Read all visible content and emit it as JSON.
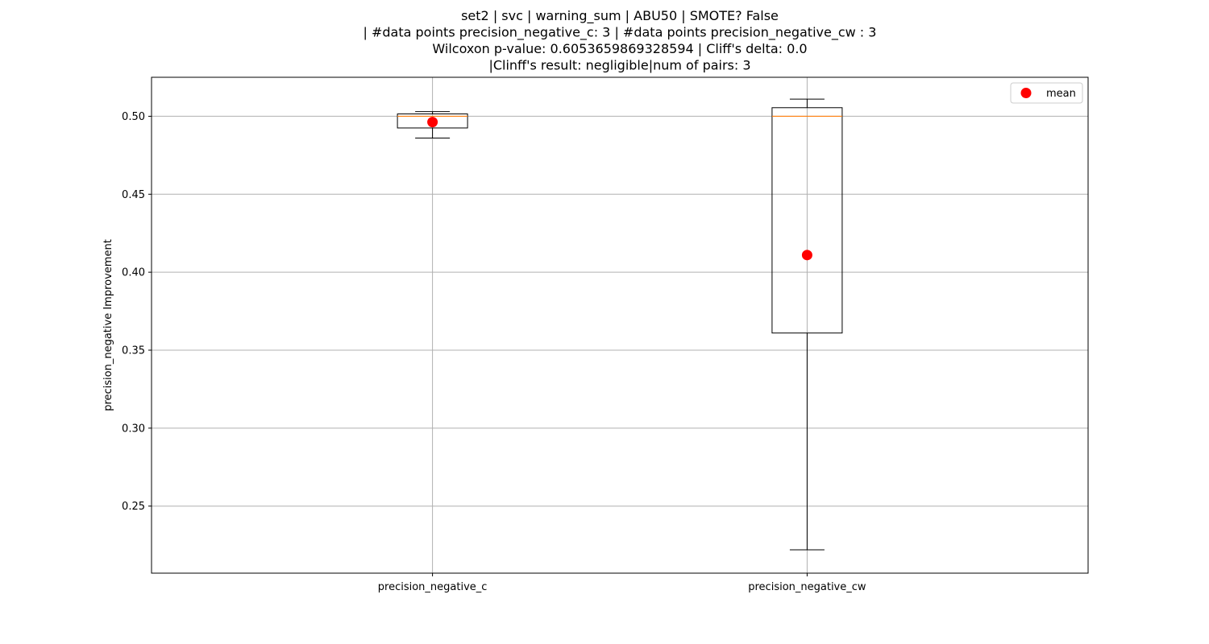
{
  "chart_data": {
    "type": "box",
    "title_lines": [
      "set2 | svc | warning_sum | ABU50 | SMOTE? False",
      "| #data points precision_negative_c: 3 | #data points precision_negative_cw : 3",
      "Wilcoxon p-value: 0.6053659869328594 | Cliff's delta: 0.0",
      "|Clinff's result: negligible|num of pairs: 3"
    ],
    "xlabel": "",
    "ylabel": "precision_negative Improvement",
    "categories": [
      "precision_negative_c",
      "precision_negative_cw"
    ],
    "boxes": [
      {
        "category": "precision_negative_c",
        "whisker_low": 0.486,
        "q1": 0.4925,
        "median": 0.5,
        "q3": 0.5015,
        "whisker_high": 0.503,
        "mean": 0.4963
      },
      {
        "category": "precision_negative_cw",
        "whisker_low": 0.222,
        "q1": 0.361,
        "median": 0.5,
        "q3": 0.5055,
        "whisker_high": 0.511,
        "mean": 0.411
      }
    ],
    "ylim": [
      0.207,
      0.525
    ],
    "yticks": [
      0.25,
      0.3,
      0.35,
      0.4,
      0.45,
      0.5
    ],
    "ytick_labels": [
      "0.25",
      "0.30",
      "0.35",
      "0.40",
      "0.45",
      "0.50"
    ],
    "grid": true,
    "legend": {
      "position": "top-right",
      "entries": [
        {
          "label": "mean",
          "marker": "circle",
          "color": "#ff0000"
        }
      ]
    },
    "colors": {
      "box": "#000000",
      "median": "#ff7f0e",
      "mean": "#ff0000",
      "grid": "#b0b0b0"
    }
  }
}
